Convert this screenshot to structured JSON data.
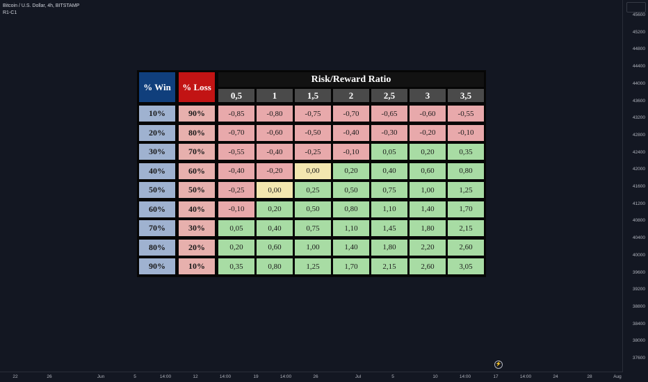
{
  "chart": {
    "title": "Bitcoin / U.S. Dollar, 4h, BITSTAMP",
    "subtitle": "R1-C1",
    "price_ticks": [
      "45600",
      "45200",
      "44800",
      "44400",
      "44000",
      "43600",
      "43200",
      "42800",
      "42400",
      "42000",
      "41600",
      "41200",
      "40800",
      "40400",
      "40000",
      "39600",
      "39200",
      "38800",
      "38400",
      "38000",
      "37600"
    ],
    "time_ticks": [
      "22",
      "26",
      "Jun",
      "5",
      "14:00",
      "12",
      "14:00",
      "19",
      "14:00",
      "26",
      "Jul",
      "5",
      "10",
      "14:00",
      "17",
      "14:00",
      "24",
      "28",
      "Aug"
    ],
    "bolt_icon": "lightning-icon"
  },
  "table": {
    "win_header": "% Win",
    "loss_header": "% Loss",
    "rr_header": "Risk/Reward Ratio",
    "ratios": [
      "0,5",
      "1",
      "1,5",
      "2",
      "2,5",
      "3",
      "3,5"
    ],
    "rows": [
      {
        "win": "10%",
        "loss": "90%",
        "values": [
          "-0,85",
          "-0,80",
          "-0,75",
          "-0,70",
          "-0,65",
          "-0,60",
          "-0,55"
        ]
      },
      {
        "win": "20%",
        "loss": "80%",
        "values": [
          "-0,70",
          "-0,60",
          "-0,50",
          "-0,40",
          "-0,30",
          "-0,20",
          "-0,10"
        ]
      },
      {
        "win": "30%",
        "loss": "70%",
        "values": [
          "-0,55",
          "-0,40",
          "-0,25",
          "-0,10",
          "0,05",
          "0,20",
          "0,35"
        ]
      },
      {
        "win": "40%",
        "loss": "60%",
        "values": [
          "-0,40",
          "-0,20",
          "0,00",
          "0,20",
          "0,40",
          "0,60",
          "0,80"
        ]
      },
      {
        "win": "50%",
        "loss": "50%",
        "values": [
          "-0,25",
          "0,00",
          "0,25",
          "0,50",
          "0,75",
          "1,00",
          "1,25"
        ]
      },
      {
        "win": "60%",
        "loss": "40%",
        "values": [
          "-0,10",
          "0,20",
          "0,50",
          "0,80",
          "1,10",
          "1,40",
          "1,70"
        ]
      },
      {
        "win": "70%",
        "loss": "30%",
        "values": [
          "0,05",
          "0,40",
          "0,75",
          "1,10",
          "1,45",
          "1,80",
          "2,15"
        ]
      },
      {
        "win": "80%",
        "loss": "20%",
        "values": [
          "0,20",
          "0,60",
          "1,00",
          "1,40",
          "1,80",
          "2,20",
          "2,60"
        ]
      },
      {
        "win": "90%",
        "loss": "10%",
        "values": [
          "0,35",
          "0,80",
          "1,25",
          "1,70",
          "2,15",
          "2,60",
          "3,05"
        ]
      }
    ],
    "colors": {
      "negative": "#e8a9ab",
      "positive": "#a8dca4",
      "zero": "#f3e7b0",
      "win_header": "#103f7c",
      "loss_header": "#c21414"
    }
  }
}
